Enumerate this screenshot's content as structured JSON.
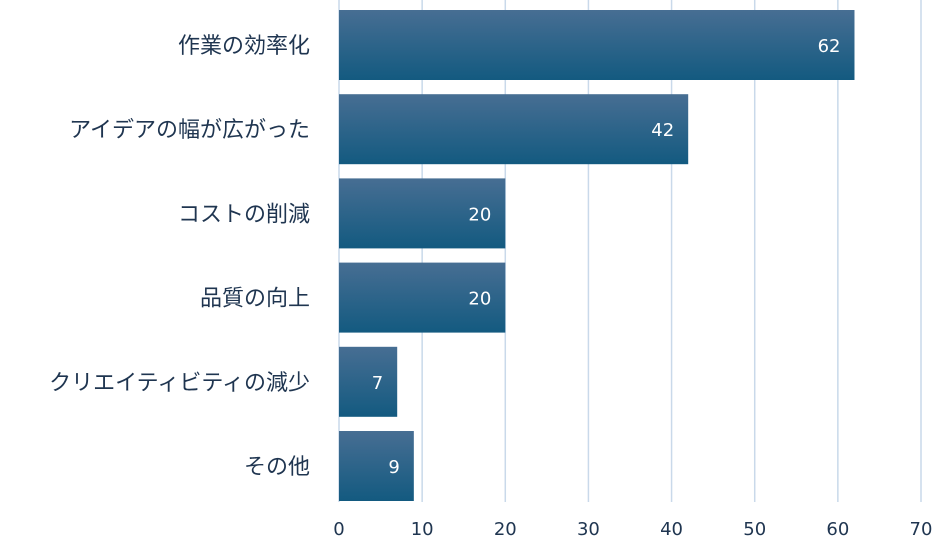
{
  "chart_data": {
    "type": "bar",
    "orientation": "horizontal",
    "title": "",
    "xlabel": "",
    "ylabel": "",
    "categories": [
      "作業の効率化",
      "アイデアの幅が広がった",
      "コストの削減",
      "品質の向上",
      "クリエイティビティの減少",
      "その他"
    ],
    "values": [
      62,
      42,
      20,
      20,
      7,
      9
    ],
    "xlim": [
      0,
      70
    ],
    "ticks": [
      0,
      10,
      20,
      30,
      40,
      50,
      60,
      70
    ],
    "grid": true,
    "colors": {
      "bar_top": "#476e93",
      "bar_bottom": "#135a80",
      "grid": "#c9d9ea",
      "text": "#1f3550",
      "value_label": "#ffffff"
    }
  }
}
